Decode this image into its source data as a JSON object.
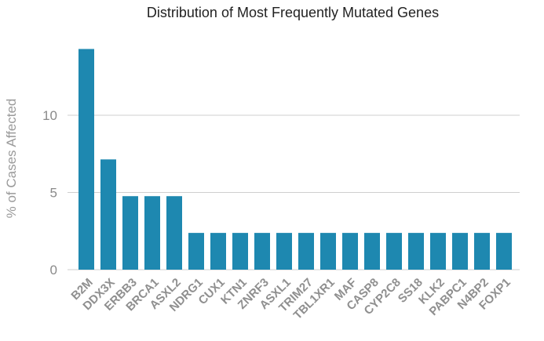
{
  "chart_data": {
    "type": "bar",
    "title": "Distribution of Most Frequently Mutated Genes",
    "xlabel": "",
    "ylabel": "% of Cases Affected",
    "ylim": [
      0,
      15
    ],
    "yticks": [
      0,
      5,
      10
    ],
    "grid": true,
    "color": "#1e88b0",
    "categories": [
      "B2M",
      "DDX3X",
      "ERBB3",
      "BRCA1",
      "ASXL2",
      "NDRG1",
      "CUX1",
      "KTN1",
      "ZNRF3",
      "ASXL1",
      "TRIM27",
      "TBL1XR1",
      "MAF",
      "CASP8",
      "CYP2C8",
      "SS18",
      "KLK2",
      "PABPC1",
      "N4BP2",
      "FOXP1"
    ],
    "values": [
      14.29,
      7.14,
      4.76,
      4.76,
      4.76,
      2.38,
      2.38,
      2.38,
      2.38,
      2.38,
      2.38,
      2.38,
      2.38,
      2.38,
      2.38,
      2.38,
      2.38,
      2.38,
      2.38,
      2.38
    ]
  }
}
